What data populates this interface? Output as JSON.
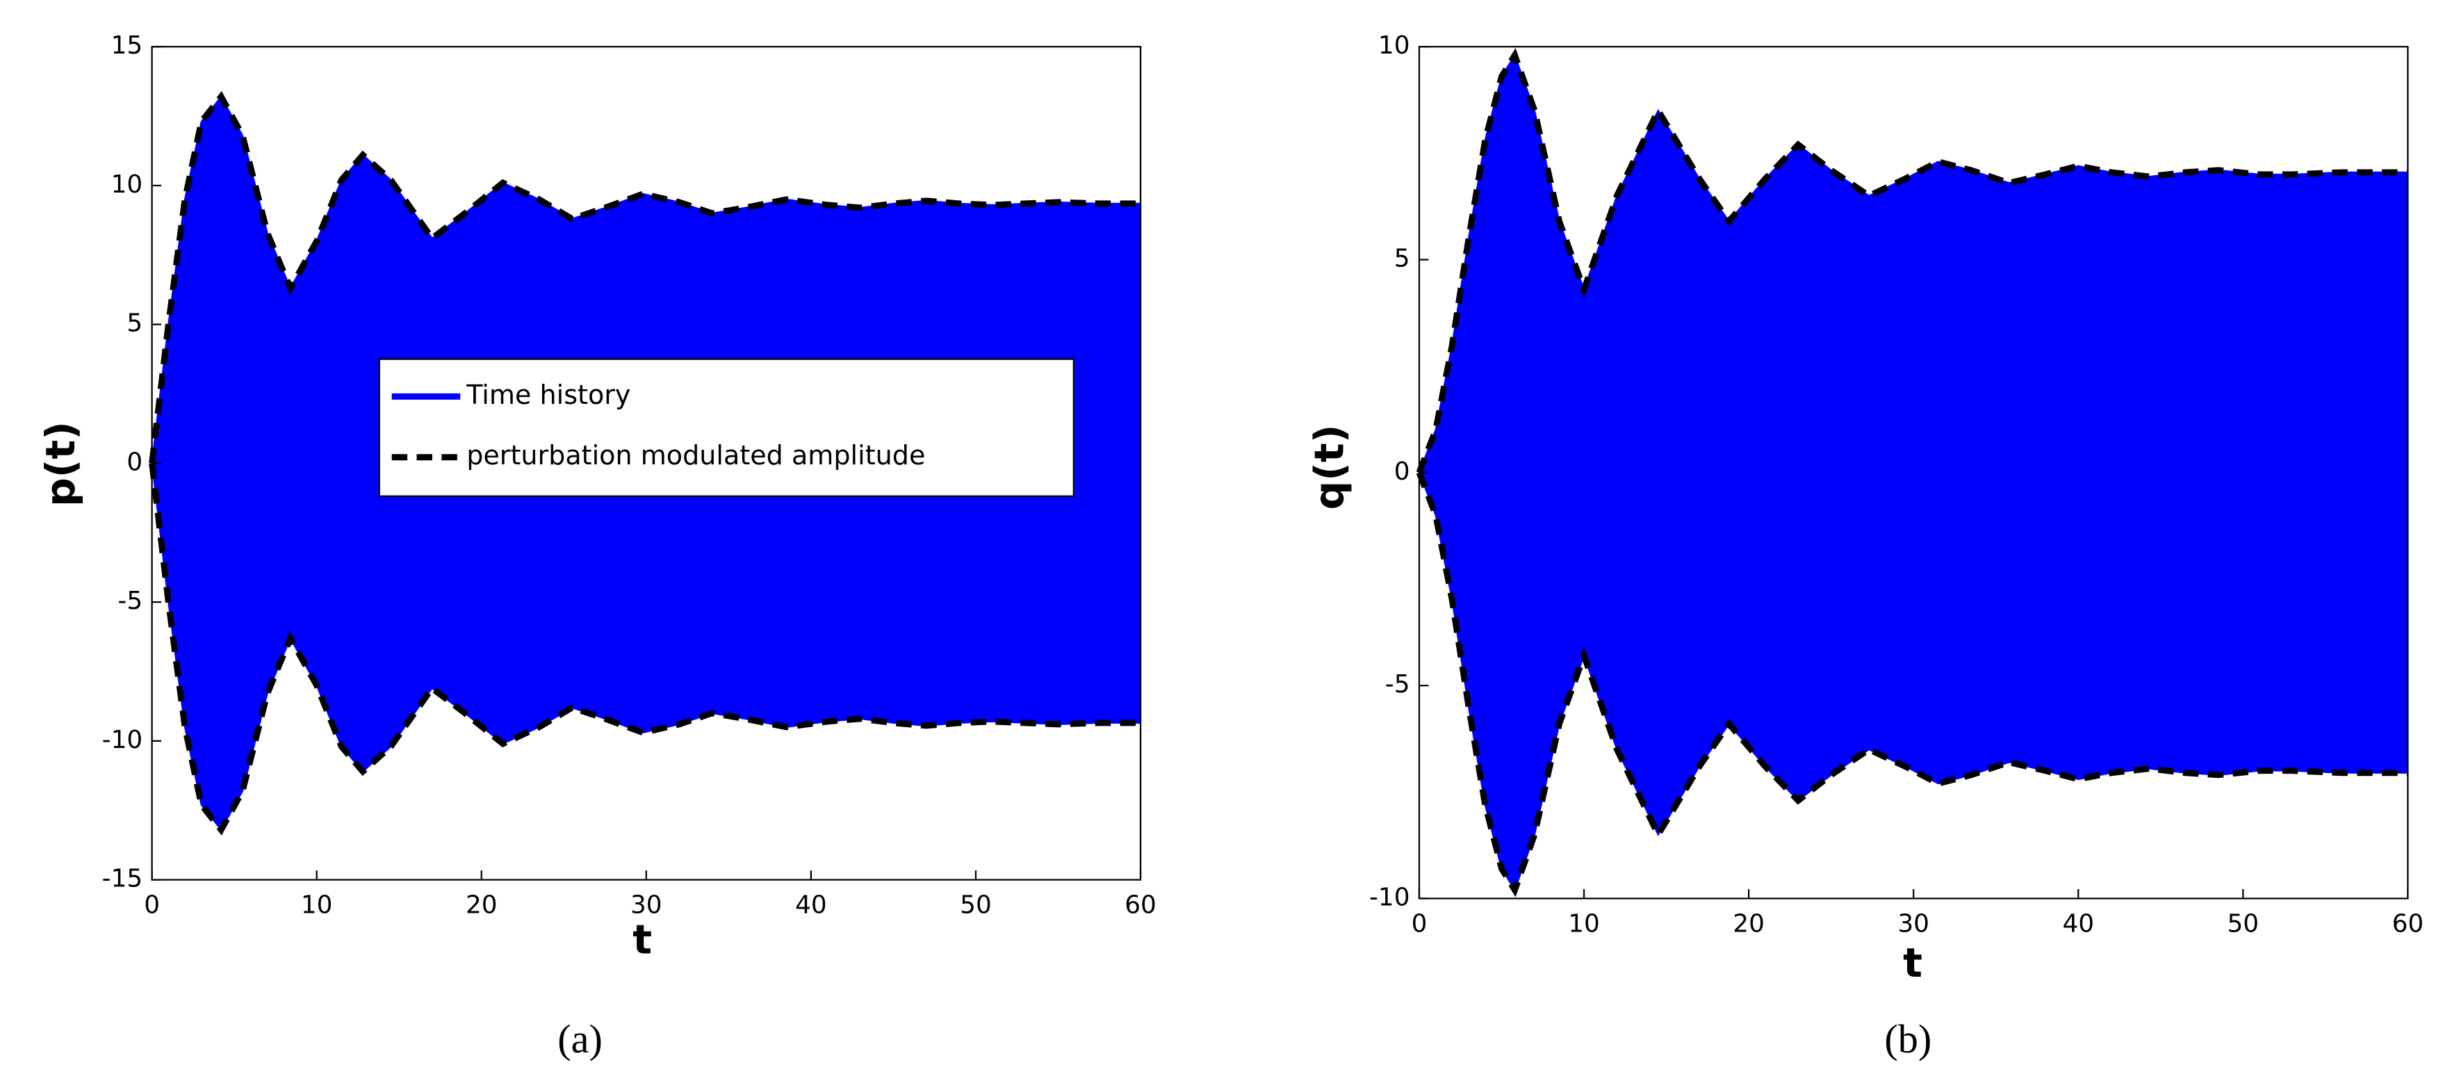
{
  "chart_data": [
    {
      "type": "band",
      "ylabel": "p(t)",
      "xlabel": "t",
      "caption": "(a)",
      "xlim": [
        0,
        60
      ],
      "ylim": [
        -15,
        15
      ],
      "xticks": [
        0,
        10,
        20,
        30,
        40,
        50,
        60
      ],
      "yticks": [
        -15,
        -10,
        -5,
        0,
        5,
        10,
        15
      ],
      "legend": {
        "position": "center",
        "entries": [
          {
            "name": "Time history",
            "color": "#0000ff",
            "style": "solid"
          },
          {
            "name": "perturbation modulated amplitude",
            "color": "#000000",
            "style": "dashed"
          }
        ]
      },
      "x": [
        0,
        1,
        2,
        3,
        4.2,
        5.5,
        7,
        8.4,
        10,
        11.5,
        12.8,
        14.5,
        17,
        19,
        21.3,
        23.5,
        25.5,
        27.5,
        29.8,
        32,
        34,
        36,
        38.5,
        41,
        43,
        45,
        47,
        49,
        51,
        53,
        55,
        57.5,
        60
      ],
      "series": [
        {
          "color": "#0000ff",
          "envelope_color": "#000000",
          "values": [
            0,
            5.0,
            9.5,
            12.3,
            13.2,
            11.8,
            8.3,
            6.3,
            8.0,
            10.2,
            11.1,
            10.2,
            8.1,
            9.0,
            10.1,
            9.5,
            8.8,
            9.2,
            9.7,
            9.4,
            9.0,
            9.2,
            9.5,
            9.3,
            9.2,
            9.35,
            9.45,
            9.35,
            9.3,
            9.35,
            9.4,
            9.35,
            9.35
          ],
          "lower": [
            0,
            -5.0,
            -9.5,
            -12.3,
            -13.2,
            -11.8,
            -8.3,
            -6.3,
            -8.0,
            -10.2,
            -11.1,
            -10.2,
            -8.1,
            -9.0,
            -10.1,
            -9.5,
            -8.8,
            -9.2,
            -9.7,
            -9.4,
            -9.0,
            -9.2,
            -9.5,
            -9.3,
            -9.2,
            -9.35,
            -9.45,
            -9.35,
            -9.3,
            -9.35,
            -9.4,
            -9.35,
            -9.35
          ]
        }
      ]
    },
    {
      "type": "band",
      "ylabel": "q(t)",
      "xlabel": "t",
      "caption": "(b)",
      "xlim": [
        0,
        60
      ],
      "ylim": [
        -10,
        10
      ],
      "xticks": [
        0,
        10,
        20,
        30,
        40,
        50,
        60
      ],
      "yticks": [
        -10,
        -5,
        0,
        5,
        10
      ],
      "x": [
        0,
        1,
        2,
        3,
        4,
        5,
        5.8,
        7,
        8.5,
        10,
        12,
        14.5,
        17,
        18.8,
        21,
        23,
        25,
        27.3,
        29.5,
        31.5,
        33.5,
        35.8,
        38,
        40,
        42,
        44.3,
        46.5,
        48.5,
        51,
        53,
        56,
        60
      ],
      "series": [
        {
          "color": "#0000ff",
          "envelope_color": "#000000",
          "values": [
            0,
            1.0,
            3.0,
            5.5,
            7.8,
            9.3,
            9.8,
            8.5,
            5.9,
            4.3,
            6.5,
            8.5,
            6.9,
            5.9,
            6.9,
            7.7,
            7.1,
            6.5,
            6.9,
            7.3,
            7.1,
            6.8,
            7.0,
            7.2,
            7.05,
            6.95,
            7.05,
            7.1,
            7.0,
            7.0,
            7.05,
            7.05
          ],
          "lower": [
            0,
            -1.0,
            -3.0,
            -5.5,
            -7.8,
            -9.3,
            -9.8,
            -8.5,
            -5.9,
            -4.3,
            -6.5,
            -8.5,
            -6.9,
            -5.9,
            -6.9,
            -7.7,
            -7.1,
            -6.5,
            -6.9,
            -7.3,
            -7.1,
            -6.8,
            -7.0,
            -7.2,
            -7.05,
            -6.95,
            -7.05,
            -7.1,
            -7.0,
            -7.0,
            -7.05,
            -7.05
          ]
        }
      ]
    }
  ]
}
